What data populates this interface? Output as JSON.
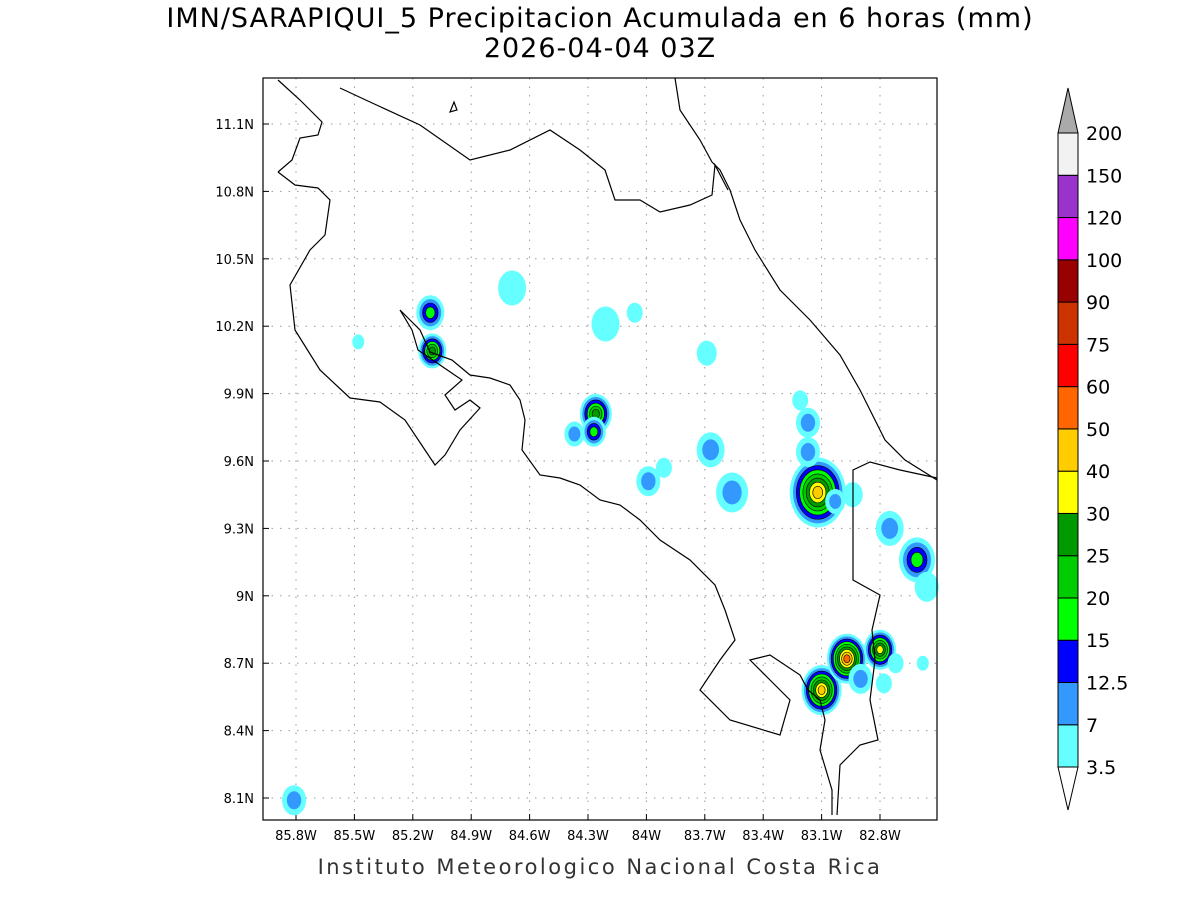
{
  "title": "IMN/SARAPIQUI_5 Precipitacion Acumulada en 6 horas (mm)",
  "subtitle": "2026-04-04 03Z",
  "footer": "Instituto Meteorologico Nacional Costa Rica",
  "chart_data": {
    "type": "heatmap",
    "variable": "6-hour accumulated precipitation (mm)",
    "lon_range": [
      -85.97,
      -82.5
    ],
    "lat_range": [
      8.0,
      11.3
    ],
    "grid": true,
    "lon_ticks": [
      "85.8W",
      "85.5W",
      "85.2W",
      "84.9W",
      "84.6W",
      "84.3W",
      "84W",
      "83.7W",
      "83.4W",
      "83.1W",
      "82.8W"
    ],
    "lon_values": [
      -85.8,
      -85.5,
      -85.2,
      -84.9,
      -84.6,
      -84.3,
      -84.0,
      -83.7,
      -83.4,
      -83.1,
      -82.8
    ],
    "lat_ticks": [
      "11.1N",
      "10.8N",
      "10.5N",
      "10.2N",
      "9.9N",
      "9.6N",
      "9.3N",
      "9N",
      "8.7N",
      "8.4N",
      "8.1N"
    ],
    "lat_values": [
      11.1,
      10.8,
      10.5,
      10.2,
      9.9,
      9.6,
      9.3,
      9.0,
      8.7,
      8.4,
      8.1
    ],
    "legend": {
      "placement": "right",
      "levels": [
        "3.5",
        "7",
        "12.5",
        "15",
        "20",
        "25",
        "30",
        "40",
        "50",
        "60",
        "75",
        "90",
        "100",
        "120",
        "150",
        "200"
      ],
      "colors": [
        "#66ffff",
        "#3399ff",
        "#0000ff",
        "#00ff00",
        "#00cc00",
        "#009900",
        "#ffff00",
        "#ffcc00",
        "#ff6600",
        "#ff0000",
        "#cc3300",
        "#990000",
        "#ff00ff",
        "#9933cc",
        "#f2f2f2"
      ],
      "over_color": "#aaaaaa",
      "under_color": "#ffffff"
    },
    "cells": [
      {
        "lon": -85.11,
        "lat": 10.26,
        "peak": 15,
        "extent": 0.05
      },
      {
        "lon": -85.1,
        "lat": 10.09,
        "peak": 25,
        "extent": 0.05
      },
      {
        "lon": -84.69,
        "lat": 10.37,
        "peak": 3.5,
        "extent": 0.05
      },
      {
        "lon": -84.21,
        "lat": 10.21,
        "peak": 3.5,
        "extent": 0.05
      },
      {
        "lon": -84.06,
        "lat": 10.26,
        "peak": 3.5,
        "extent": 0.02
      },
      {
        "lon": -85.48,
        "lat": 10.13,
        "peak": 3.5,
        "extent": 0.01
      },
      {
        "lon": -84.26,
        "lat": 9.81,
        "peak": 25,
        "extent": 0.06
      },
      {
        "lon": -84.27,
        "lat": 9.73,
        "peak": 15,
        "extent": 0.04
      },
      {
        "lon": -84.37,
        "lat": 9.72,
        "peak": 7,
        "extent": 0.03
      },
      {
        "lon": -83.69,
        "lat": 10.08,
        "peak": 3.5,
        "extent": 0.03
      },
      {
        "lon": -83.67,
        "lat": 9.65,
        "peak": 7,
        "extent": 0.05
      },
      {
        "lon": -83.99,
        "lat": 9.51,
        "peak": 7,
        "extent": 0.04
      },
      {
        "lon": -83.91,
        "lat": 9.57,
        "peak": 3.5,
        "extent": 0.02
      },
      {
        "lon": -83.56,
        "lat": 9.46,
        "peak": 7,
        "extent": 0.06
      },
      {
        "lon": -83.12,
        "lat": 9.46,
        "peak": 40,
        "extent": 0.12
      },
      {
        "lon": -83.17,
        "lat": 9.77,
        "peak": 7,
        "extent": 0.04
      },
      {
        "lon": -83.21,
        "lat": 9.87,
        "peak": 3.5,
        "extent": 0.02
      },
      {
        "lon": -83.17,
        "lat": 9.64,
        "peak": 7,
        "extent": 0.04
      },
      {
        "lon": -83.03,
        "lat": 9.42,
        "peak": 7,
        "extent": 0.03
      },
      {
        "lon": -82.94,
        "lat": 9.45,
        "peak": 3.5,
        "extent": 0.03
      },
      {
        "lon": -82.75,
        "lat": 9.3,
        "peak": 7,
        "extent": 0.05
      },
      {
        "lon": -82.61,
        "lat": 9.16,
        "peak": 15,
        "extent": 0.07
      },
      {
        "lon": -82.56,
        "lat": 9.04,
        "peak": 3.5,
        "extent": 0.04
      },
      {
        "lon": -83.1,
        "lat": 8.58,
        "peak": 40,
        "extent": 0.08
      },
      {
        "lon": -82.97,
        "lat": 8.72,
        "peak": 50,
        "extent": 0.08
      },
      {
        "lon": -82.8,
        "lat": 8.76,
        "peak": 30,
        "extent": 0.06
      },
      {
        "lon": -82.9,
        "lat": 8.63,
        "peak": 7,
        "extent": 0.04
      },
      {
        "lon": -82.72,
        "lat": 8.7,
        "peak": 3.5,
        "extent": 0.02
      },
      {
        "lon": -82.78,
        "lat": 8.61,
        "peak": 3.5,
        "extent": 0.02
      },
      {
        "lon": -82.58,
        "lat": 8.7,
        "peak": 3.5,
        "extent": 0.01
      },
      {
        "lon": -85.81,
        "lat": 8.09,
        "peak": 7,
        "extent": 0.04
      }
    ]
  }
}
